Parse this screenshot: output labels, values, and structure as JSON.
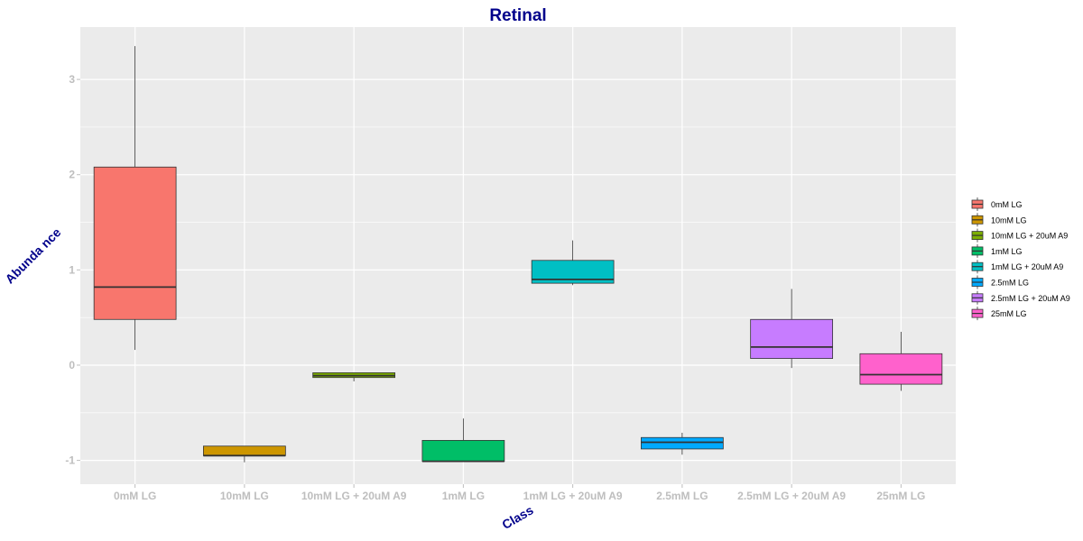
{
  "chart_data": {
    "type": "boxplot",
    "title": "Retinal",
    "xlabel": "Class",
    "ylabel": "Abunda nce",
    "ylim": [
      -1.25,
      3.55
    ],
    "yticks": [
      -1,
      0,
      1,
      2,
      3
    ],
    "ytick_labels": [
      "-1",
      "0",
      "1",
      "2",
      "3"
    ],
    "grid": true,
    "legend_position": "right",
    "categories": [
      "0mM LG",
      "10mM LG",
      "10mM LG + 20uM A9",
      "1mM LG",
      "1mM LG + 20uM A9",
      "2.5mM LG",
      "2.5mM LG + 20uM A9",
      "25mM LG"
    ],
    "legend_order": [
      "0mM LG",
      "10mM LG",
      "10mM LG + 20uM A9",
      "1mM LG",
      "1mM LG + 20uM A9",
      "2.5mM LG",
      "2.5mM LG + 20uM A9",
      "25mM LG"
    ],
    "colors": [
      "#F8766D",
      "#CD9600",
      "#7CAE00",
      "#00BE67",
      "#00BFC4",
      "#00A9FF",
      "#C77CFF",
      "#FF61CC"
    ],
    "boxes": [
      {
        "name": "0mM LG",
        "min": 0.16,
        "q1": 0.48,
        "median": 0.82,
        "q3": 2.08,
        "max": 3.35
      },
      {
        "name": "10mM LG",
        "min": -1.02,
        "q1": -0.95,
        "median": -0.95,
        "q3": -0.85,
        "max": -0.85
      },
      {
        "name": "10mM LG + 20uM A9",
        "min": -0.17,
        "q1": -0.13,
        "median": -0.11,
        "q3": -0.08,
        "max": -0.08
      },
      {
        "name": "1mM LG",
        "min": -1.01,
        "q1": -1.01,
        "median": -1.01,
        "q3": -0.79,
        "max": -0.56
      },
      {
        "name": "1mM LG + 20uM A9",
        "min": 0.84,
        "q1": 0.86,
        "median": 0.9,
        "q3": 1.1,
        "max": 1.31
      },
      {
        "name": "2.5mM LG",
        "min": -0.94,
        "q1": -0.88,
        "median": -0.81,
        "q3": -0.76,
        "max": -0.71
      },
      {
        "name": "2.5mM LG + 20uM A9",
        "min": -0.03,
        "q1": 0.07,
        "median": 0.19,
        "q3": 0.48,
        "max": 0.8
      },
      {
        "name": "25mM LG",
        "min": -0.27,
        "q1": -0.2,
        "median": -0.1,
        "q3": 0.12,
        "max": 0.35
      }
    ]
  }
}
